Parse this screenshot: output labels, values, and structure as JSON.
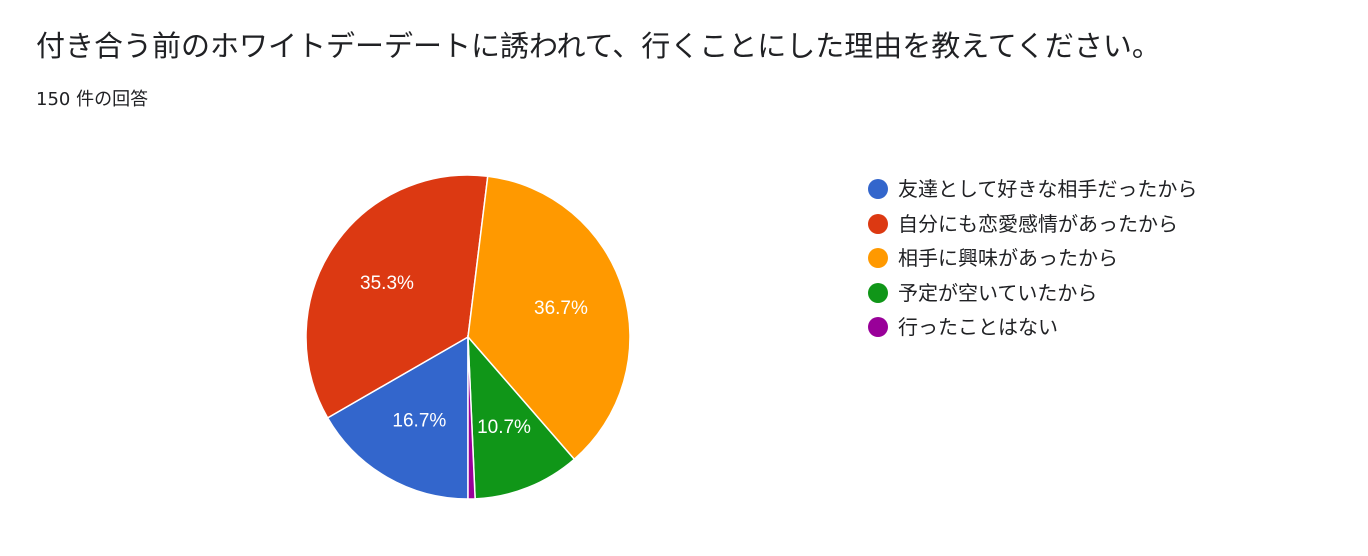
{
  "form": {
    "question_title": "付き合う前のホワイトデーデートに誘われて、行くことにした理由を教えてください。",
    "response_count": "150 件の回答"
  },
  "chart_data": {
    "type": "pie",
    "start_angle_deg": 90,
    "direction": "clockwise",
    "legend_position": "right",
    "series": [
      {
        "name": "友達として好きな相手だったから",
        "value": 16.7,
        "label": "16.7%",
        "color": "#3366cc"
      },
      {
        "name": "自分にも恋愛感情があったから",
        "value": 35.3,
        "label": "35.3%",
        "color": "#dc3912"
      },
      {
        "name": "相手に興味があったから",
        "value": 36.7,
        "label": "36.7%",
        "color": "#ff9900"
      },
      {
        "name": "予定が空いていたから",
        "value": 10.7,
        "label": "10.7%",
        "color": "#109618"
      },
      {
        "name": "行ったことはない",
        "value": 0.7,
        "label": "",
        "color": "#990099"
      }
    ]
  }
}
